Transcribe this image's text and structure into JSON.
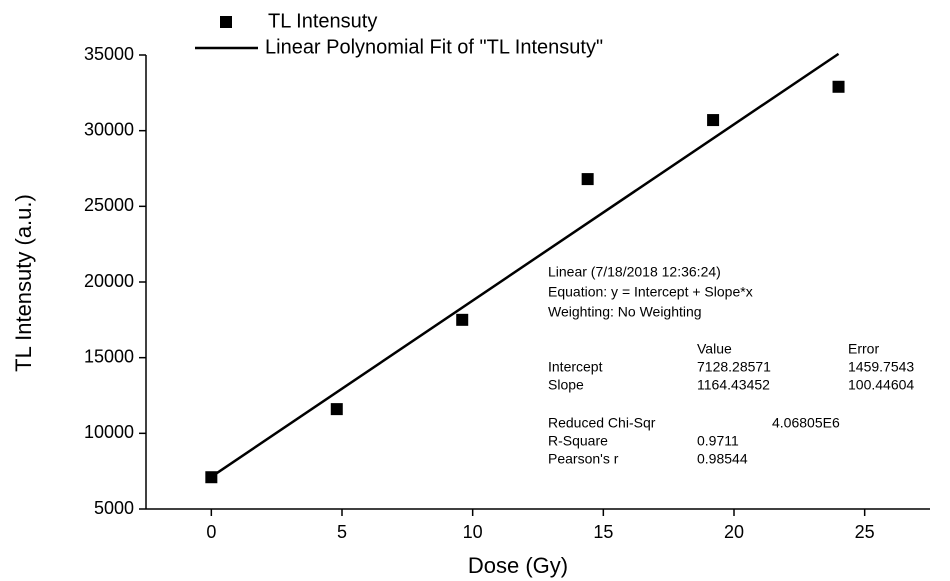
{
  "chart_data": {
    "type": "scatter",
    "x_label": "Dose (Gy)",
    "y_label": "TL Intensuty (a.u.)",
    "xlim": [
      -2.5,
      27.5
    ],
    "ylim": [
      5000,
      35000
    ],
    "xticks": [
      0,
      5,
      10,
      15,
      20,
      25
    ],
    "yticks": [
      5000,
      10000,
      15000,
      20000,
      25000,
      30000,
      35000
    ],
    "series": [
      {
        "name": "TL Intensuty",
        "color": "#000000",
        "marker": "square",
        "x": [
          0,
          4.8,
          9.6,
          14.4,
          19.2,
          24
        ],
        "values": [
          7100,
          11600,
          17500,
          26800,
          30700,
          32900
        ]
      },
      {
        "name": "Linear Polynomial Fit of \"TL Intensuty\"",
        "color": "#000000",
        "marker": "line",
        "x": [
          0,
          24
        ],
        "values": [
          7128.28571,
          35074.71419
        ]
      }
    ],
    "annotation": {
      "lines": [
        "Linear (7/18/2018 12:36:24)",
        "Equation: y = Intercept + Slope*x",
        "Weighting: No Weighting"
      ],
      "headers": [
        "Value",
        "Error"
      ],
      "rows": [
        [
          "Intercept",
          "7128.28571",
          "1459.7543"
        ],
        [
          "Slope",
          "1164.43452",
          "100.44604"
        ]
      ],
      "stats": [
        [
          "Reduced Chi-Sqr",
          "4.06805E6"
        ],
        [
          "R-Square",
          "0.9711"
        ],
        [
          "Pearson's r",
          "0.98544"
        ]
      ]
    }
  }
}
